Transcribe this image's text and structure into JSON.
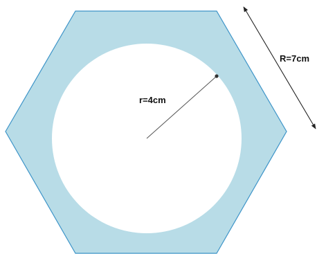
{
  "diagram": {
    "inner_radius_label": "r=4cm",
    "outer_radius_label": "R=7cm",
    "colors": {
      "hexagon_fill": "#b8dce7",
      "hexagon_stroke": "#3d94c8",
      "circle_fill": "#ffffff",
      "radius_line": "#555555",
      "arrow": "#222222"
    }
  }
}
